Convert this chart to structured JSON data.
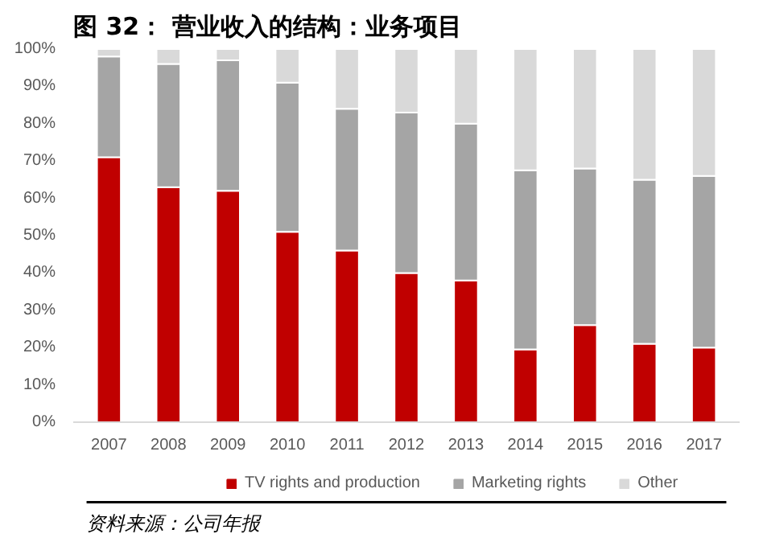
{
  "chart_data": {
    "type": "bar",
    "stacked": true,
    "title": "图 32： 营业收入的结构：业务项目",
    "categories": [
      "2007",
      "2008",
      "2009",
      "2010",
      "2011",
      "2012",
      "2013",
      "2014",
      "2015",
      "2016",
      "2017"
    ],
    "series": [
      {
        "name": "TV rights and production",
        "color": "#c00000",
        "values": [
          71,
          63,
          62,
          51,
          46,
          40,
          38,
          19.5,
          26,
          21,
          20
        ]
      },
      {
        "name": "Marketing rights",
        "color": "#a5a5a5",
        "values": [
          27,
          33,
          35,
          40,
          38,
          43,
          42,
          48,
          42,
          44,
          46
        ]
      },
      {
        "name": "Other",
        "color": "#d9d9d9",
        "values": [
          2,
          4,
          3,
          9,
          16,
          17,
          20,
          32.5,
          32,
          35,
          34
        ]
      }
    ],
    "ylim": [
      0,
      100
    ],
    "yticks": [
      {
        "value": 0,
        "label": "0%"
      },
      {
        "value": 10,
        "label": "10%"
      },
      {
        "value": 20,
        "label": "20%"
      },
      {
        "value": 30,
        "label": "30%"
      },
      {
        "value": 40,
        "label": "40%"
      },
      {
        "value": 50,
        "label": "50%"
      },
      {
        "value": 60,
        "label": "60%"
      },
      {
        "value": 70,
        "label": "70%"
      },
      {
        "value": 80,
        "label": "80%"
      },
      {
        "value": 90,
        "label": "90%"
      },
      {
        "value": 100,
        "label": "100%"
      }
    ],
    "grid": false,
    "legend": "bottom",
    "annotations": [
      "资料来源：公司年报"
    ]
  }
}
